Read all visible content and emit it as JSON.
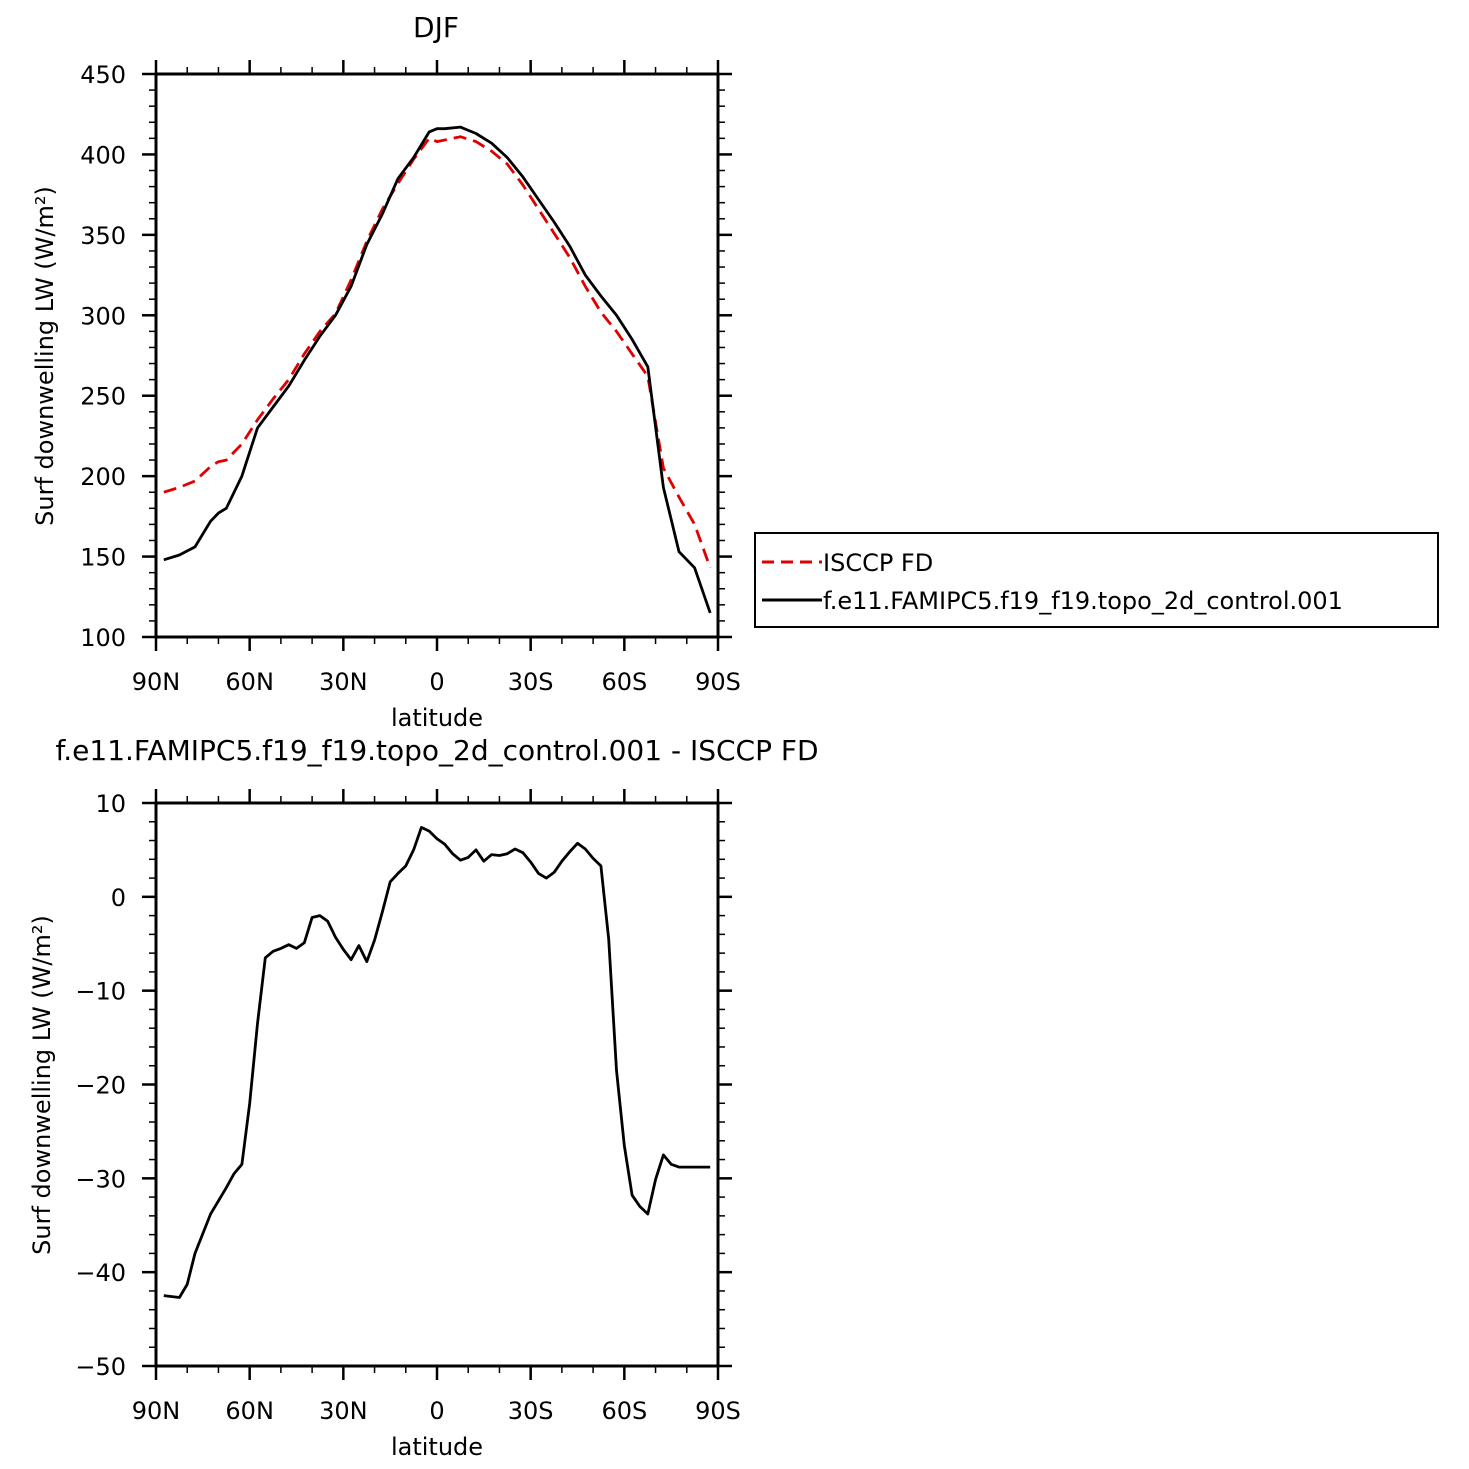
{
  "chart_data": [
    {
      "type": "line",
      "title": "DJF",
      "xlabel": "latitude",
      "ylabel": "Surf downwelling LW (W/m²)",
      "xlim": [
        -90,
        90
      ],
      "ylim": [
        100,
        450
      ],
      "x_ticks": [
        -90,
        -60,
        -30,
        0,
        30,
        60,
        90
      ],
      "x_tick_labels": [
        "90N",
        "60N",
        "30N",
        "0",
        "30S",
        "60S",
        "90S"
      ],
      "y_ticks": [
        100,
        150,
        200,
        250,
        300,
        350,
        400,
        450
      ],
      "y_tick_labels": [
        "100",
        "150",
        "200",
        "250",
        "300",
        "350",
        "400",
        "450"
      ],
      "grid": false,
      "legend_position": "right",
      "series": [
        {
          "name": "ISCCP FD",
          "color": "#e00000",
          "dash": "dashed",
          "x": [
            -87.5,
            -82.5,
            -77.5,
            -72.5,
            -70,
            -67.5,
            -62.5,
            -57.5,
            -52.5,
            -47.5,
            -42.5,
            -37.5,
            -32.5,
            -27.5,
            -22.5,
            -17.5,
            -12.5,
            -7.5,
            -2.5,
            0,
            2.5,
            7.5,
            12.5,
            17.5,
            22.5,
            27.5,
            32.5,
            37.5,
            42.5,
            47.5,
            52.5,
            57.5,
            62.5,
            67.5,
            72.5,
            77.5,
            82.5,
            87.5
          ],
          "y": [
            190,
            193,
            197,
            206,
            209,
            210,
            220,
            235,
            248,
            260,
            276,
            290,
            301,
            322,
            346,
            366,
            382,
            397,
            410,
            408,
            409,
            411,
            408,
            402,
            394,
            381,
            366,
            351,
            336,
            318,
            302,
            290,
            276,
            262,
            205,
            187,
            170,
            143
          ]
        },
        {
          "name": "f.e11.FAMIPC5.f19_f19.topo_2d_control.001",
          "color": "#000000",
          "dash": "solid",
          "x": [
            -87.5,
            -82.5,
            -77.5,
            -72.5,
            -70,
            -67.5,
            -62.5,
            -57.5,
            -52.5,
            -47.5,
            -42.5,
            -37.5,
            -32.5,
            -27.5,
            -22.5,
            -17.5,
            -12.5,
            -7.5,
            -2.5,
            0,
            2.5,
            7.5,
            12.5,
            17.5,
            22.5,
            27.5,
            32.5,
            37.5,
            42.5,
            47.5,
            52.5,
            57.5,
            62.5,
            67.5,
            72.5,
            77.5,
            82.5,
            87.5
          ],
          "y": [
            148,
            151,
            156,
            172,
            177,
            180,
            200,
            230,
            243,
            256,
            272,
            287,
            300,
            318,
            344,
            363,
            385,
            398,
            414,
            416,
            416,
            417,
            413,
            407,
            398,
            386,
            372,
            358,
            343,
            325,
            312,
            300,
            285,
            268,
            193,
            153,
            143,
            115
          ]
        }
      ]
    },
    {
      "type": "line",
      "title": "f.e11.FAMIPC5.f19_f19.topo_2d_control.001 - ISCCP FD",
      "xlabel": "latitude",
      "ylabel": "Surf downwelling LW (W/m²)",
      "xlim": [
        -90,
        90
      ],
      "ylim": [
        -50,
        10
      ],
      "x_ticks": [
        -90,
        -60,
        -30,
        0,
        30,
        60,
        90
      ],
      "x_tick_labels": [
        "90N",
        "60N",
        "30N",
        "0",
        "30S",
        "60S",
        "90S"
      ],
      "y_ticks": [
        -50,
        -40,
        -30,
        -20,
        -10,
        0,
        10
      ],
      "y_tick_labels": [
        "−50",
        "−40",
        "−30",
        "−20",
        "−10",
        "0",
        "10"
      ],
      "grid": false,
      "series": [
        {
          "color": "#000000",
          "dash": "solid",
          "x": [
            -87.5,
            -82.5,
            -80,
            -77.5,
            -72.5,
            -67.5,
            -65,
            -62.5,
            -60,
            -57.5,
            -55,
            -52.5,
            -50,
            -47.5,
            -45,
            -42.5,
            -40,
            -37.5,
            -35,
            -32.5,
            -30,
            -27.5,
            -25,
            -22.5,
            -20,
            -17.5,
            -15,
            -12.5,
            -10,
            -7.5,
            -5,
            -2.5,
            0,
            2.5,
            5,
            7.5,
            10,
            12.5,
            15,
            17.5,
            20,
            22.5,
            25,
            27.5,
            30,
            32.5,
            35,
            37.5,
            40,
            42.5,
            45,
            47.5,
            50,
            52.5,
            55,
            57.5,
            60,
            62.5,
            65,
            67.5,
            70,
            72.5,
            75,
            77.5,
            80,
            82.5,
            85,
            87.5
          ],
          "y": [
            -42.5,
            -42.7,
            -41.3,
            -38.0,
            -33.8,
            -31.0,
            -29.5,
            -28.5,
            -22.0,
            -13.5,
            -6.5,
            -5.8,
            -5.5,
            -5.1,
            -5.5,
            -4.9,
            -2.2,
            -2.0,
            -2.6,
            -4.3,
            -5.6,
            -6.7,
            -5.2,
            -6.9,
            -4.6,
            -1.6,
            1.6,
            2.5,
            3.3,
            5.0,
            7.4,
            7.0,
            6.2,
            5.6,
            4.6,
            3.9,
            4.2,
            5.0,
            3.8,
            4.5,
            4.4,
            4.6,
            5.1,
            4.7,
            3.7,
            2.5,
            2.0,
            2.6,
            3.8,
            4.8,
            5.7,
            5.1,
            4.1,
            3.3,
            -4.5,
            -18.5,
            -26.5,
            -31.8,
            -33.0,
            -33.8,
            -30.1,
            -27.5,
            -28.5,
            -28.8,
            -28.8,
            -28.8,
            -28.8,
            -28.8
          ]
        }
      ]
    }
  ]
}
